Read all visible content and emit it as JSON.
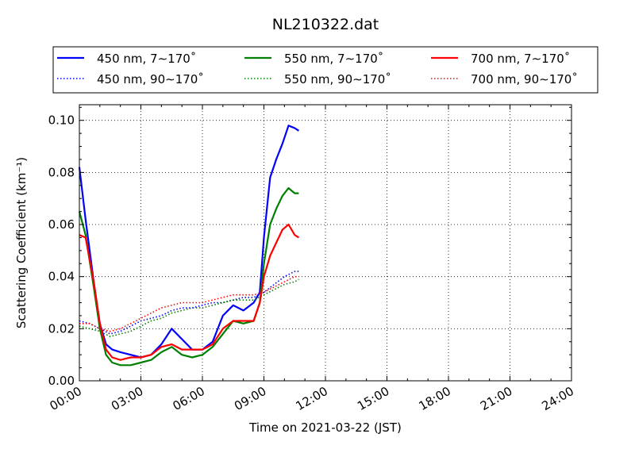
{
  "chart_data": {
    "type": "line",
    "title": "NL210322.dat",
    "xlabel": "Time on 2021-03-22 (JST)",
    "ylabel": "Scattering Coefficient (km⁻¹)",
    "xlim": [
      0,
      24
    ],
    "ylim": [
      0.0,
      0.106
    ],
    "x_unit": "hours",
    "xticks": [
      "00:00",
      "03:00",
      "06:00",
      "09:00",
      "12:00",
      "15:00",
      "18:00",
      "21:00",
      "24:00"
    ],
    "yticks": [
      "0.00",
      "0.02",
      "0.04",
      "0.06",
      "0.08",
      "0.10"
    ],
    "grid": true,
    "legend_position": "top",
    "legend_columns": 3,
    "series": [
      {
        "name": "450 nm, 7∼170˚",
        "color": "#0000ff",
        "style": "solid",
        "x": [
          0.0,
          0.3,
          0.7,
          1.0,
          1.3,
          1.6,
          2.0,
          2.5,
          3.0,
          3.5,
          4.0,
          4.5,
          5.0,
          5.5,
          6.0,
          6.5,
          7.0,
          7.5,
          8.0,
          8.5,
          8.8,
          9.0,
          9.3,
          9.6,
          9.9,
          10.2,
          10.5,
          10.7
        ],
        "y": [
          0.082,
          0.062,
          0.038,
          0.022,
          0.014,
          0.012,
          0.011,
          0.01,
          0.009,
          0.01,
          0.014,
          0.02,
          0.016,
          0.012,
          0.012,
          0.015,
          0.025,
          0.029,
          0.027,
          0.03,
          0.034,
          0.055,
          0.078,
          0.085,
          0.091,
          0.098,
          0.097,
          0.096
        ]
      },
      {
        "name": "450 nm, 90∼170˚",
        "color": "#0000ff",
        "style": "dotted",
        "x": [
          0.0,
          0.5,
          1.0,
          1.5,
          2.0,
          2.5,
          3.0,
          3.5,
          4.0,
          4.5,
          5.0,
          5.5,
          6.0,
          6.5,
          7.0,
          7.5,
          8.0,
          8.5,
          9.0,
          9.5,
          10.0,
          10.5,
          10.7
        ],
        "y": [
          0.023,
          0.022,
          0.02,
          0.018,
          0.019,
          0.021,
          0.023,
          0.024,
          0.025,
          0.027,
          0.028,
          0.028,
          0.029,
          0.03,
          0.03,
          0.031,
          0.032,
          0.032,
          0.034,
          0.037,
          0.04,
          0.042,
          0.042
        ]
      },
      {
        "name": "550 nm, 7∼170˚",
        "color": "#008000",
        "style": "solid",
        "x": [
          0.0,
          0.3,
          0.7,
          1.0,
          1.3,
          1.6,
          2.0,
          2.5,
          3.0,
          3.5,
          4.0,
          4.5,
          5.0,
          5.5,
          6.0,
          6.5,
          7.0,
          7.5,
          8.0,
          8.5,
          8.8,
          9.0,
          9.3,
          9.6,
          9.9,
          10.2,
          10.5,
          10.7
        ],
        "y": [
          0.065,
          0.056,
          0.036,
          0.02,
          0.01,
          0.007,
          0.006,
          0.006,
          0.007,
          0.008,
          0.011,
          0.013,
          0.01,
          0.009,
          0.01,
          0.013,
          0.018,
          0.023,
          0.022,
          0.023,
          0.03,
          0.045,
          0.06,
          0.066,
          0.071,
          0.074,
          0.072,
          0.072
        ]
      },
      {
        "name": "550 nm, 90∼170˚",
        "color": "#008000",
        "style": "dotted",
        "x": [
          0.0,
          0.5,
          1.0,
          1.5,
          2.0,
          2.5,
          3.0,
          3.5,
          4.0,
          4.5,
          5.0,
          5.5,
          6.0,
          6.5,
          7.0,
          7.5,
          8.0,
          8.5,
          9.0,
          9.5,
          10.0,
          10.5,
          10.7
        ],
        "y": [
          0.021,
          0.02,
          0.019,
          0.017,
          0.018,
          0.019,
          0.021,
          0.023,
          0.024,
          0.026,
          0.027,
          0.028,
          0.028,
          0.029,
          0.03,
          0.031,
          0.031,
          0.031,
          0.033,
          0.035,
          0.037,
          0.038,
          0.039
        ]
      },
      {
        "name": "700 nm, 7∼170˚",
        "color": "#ff0000",
        "style": "solid",
        "x": [
          0.0,
          0.3,
          0.7,
          1.0,
          1.3,
          1.6,
          2.0,
          2.5,
          3.0,
          3.5,
          4.0,
          4.5,
          5.0,
          5.5,
          6.0,
          6.5,
          7.0,
          7.5,
          8.0,
          8.5,
          8.8,
          9.0,
          9.3,
          9.6,
          9.9,
          10.2,
          10.5,
          10.7
        ],
        "y": [
          0.056,
          0.055,
          0.038,
          0.022,
          0.012,
          0.009,
          0.008,
          0.009,
          0.009,
          0.01,
          0.013,
          0.014,
          0.012,
          0.012,
          0.012,
          0.014,
          0.02,
          0.023,
          0.023,
          0.023,
          0.03,
          0.04,
          0.048,
          0.053,
          0.058,
          0.06,
          0.056,
          0.055
        ]
      },
      {
        "name": "700 nm, 90∼170˚",
        "color": "#ff0000",
        "style": "dotted",
        "x": [
          0.0,
          0.5,
          1.0,
          1.5,
          2.0,
          2.5,
          3.0,
          3.5,
          4.0,
          4.5,
          5.0,
          5.5,
          6.0,
          6.5,
          7.0,
          7.5,
          8.0,
          8.5,
          9.0,
          9.5,
          10.0,
          10.5,
          10.7
        ],
        "y": [
          0.022,
          0.022,
          0.02,
          0.019,
          0.02,
          0.022,
          0.024,
          0.026,
          0.028,
          0.029,
          0.03,
          0.03,
          0.03,
          0.031,
          0.032,
          0.033,
          0.033,
          0.033,
          0.034,
          0.036,
          0.038,
          0.04,
          0.04
        ]
      }
    ]
  }
}
